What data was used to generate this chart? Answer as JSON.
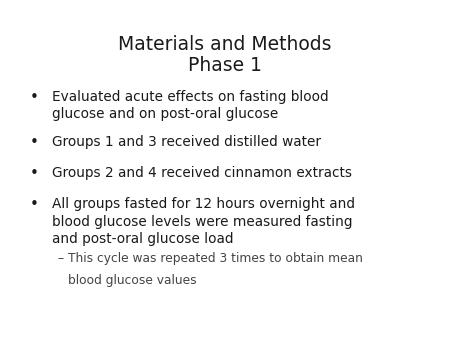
{
  "title_line1": "Materials and Methods",
  "title_line2": "Phase 1",
  "title_fontsize": 13.5,
  "title_color": "#1a1a1a",
  "background_color": "#ffffff",
  "bullet_points": [
    "Evaluated acute effects on fasting blood\nglucose and on post-oral glucose",
    "Groups 1 and 3 received distilled water",
    "Groups 2 and 4 received cinnamon extracts",
    "All groups fasted for 12 hours overnight and\nblood glucose levels were measured fasting\nand post-oral glucose load"
  ],
  "sub_bullet_line1": "– This cycle was repeated 3 times to obtain mean",
  "sub_bullet_line2": "   blood glucose values",
  "bullet_fontsize": 9.8,
  "sub_bullet_fontsize": 8.8,
  "text_color": "#1a1a1a",
  "sub_text_color": "#444444",
  "bullet_symbol": "•"
}
